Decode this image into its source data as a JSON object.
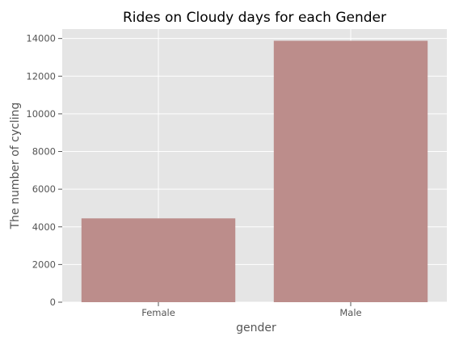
{
  "chart_data": {
    "type": "bar",
    "title": "Rides on Cloudy days for each Gender",
    "xlabel": "gender",
    "ylabel": "The number of cycling",
    "categories": [
      "Female",
      "Male"
    ],
    "values": [
      4450,
      13880
    ],
    "ylim": [
      0,
      14500
    ],
    "yticks": [
      0,
      2000,
      4000,
      6000,
      8000,
      10000,
      12000,
      14000
    ],
    "grid": true,
    "legend": "none",
    "colors": {
      "bar": "#bc8d8b",
      "plot_background": "#e5e5e5",
      "grid": "#ffffff",
      "text": "#555555"
    }
  }
}
